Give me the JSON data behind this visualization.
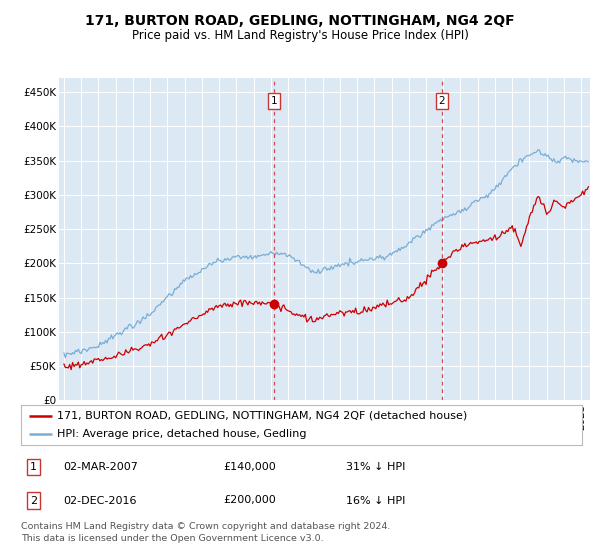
{
  "title": "171, BURTON ROAD, GEDLING, NOTTINGHAM, NG4 2QF",
  "subtitle": "Price paid vs. HM Land Registry's House Price Index (HPI)",
  "ylabel_ticks": [
    "£0",
    "£50K",
    "£100K",
    "£150K",
    "£200K",
    "£250K",
    "£300K",
    "£350K",
    "£400K",
    "£450K"
  ],
  "ytick_values": [
    0,
    50000,
    100000,
    150000,
    200000,
    250000,
    300000,
    350000,
    400000,
    450000
  ],
  "ylim": [
    0,
    470000
  ],
  "xlim_start": 1994.7,
  "xlim_end": 2025.5,
  "background_color": "#ffffff",
  "plot_bg_color": "#dce9f5",
  "grid_color": "#ffffff",
  "red_line_color": "#cc0000",
  "blue_line_color": "#7aadd4",
  "vline_color": "#cc3333",
  "purchase1_x": 2007.17,
  "purchase1_y": 140000,
  "purchase2_x": 2016.92,
  "purchase2_y": 200000,
  "legend_red_label": "171, BURTON ROAD, GEDLING, NOTTINGHAM, NG4 2QF (detached house)",
  "legend_blue_label": "HPI: Average price, detached house, Gedling",
  "table_row1": [
    "1",
    "02-MAR-2007",
    "£140,000",
    "31% ↓ HPI"
  ],
  "table_row2": [
    "2",
    "02-DEC-2016",
    "£200,000",
    "16% ↓ HPI"
  ],
  "footer": "Contains HM Land Registry data © Crown copyright and database right 2024.\nThis data is licensed under the Open Government Licence v3.0.",
  "title_fontsize": 10,
  "subtitle_fontsize": 8.5,
  "tick_fontsize": 7.5,
  "legend_fontsize": 8,
  "table_fontsize": 8,
  "footer_fontsize": 6.8
}
